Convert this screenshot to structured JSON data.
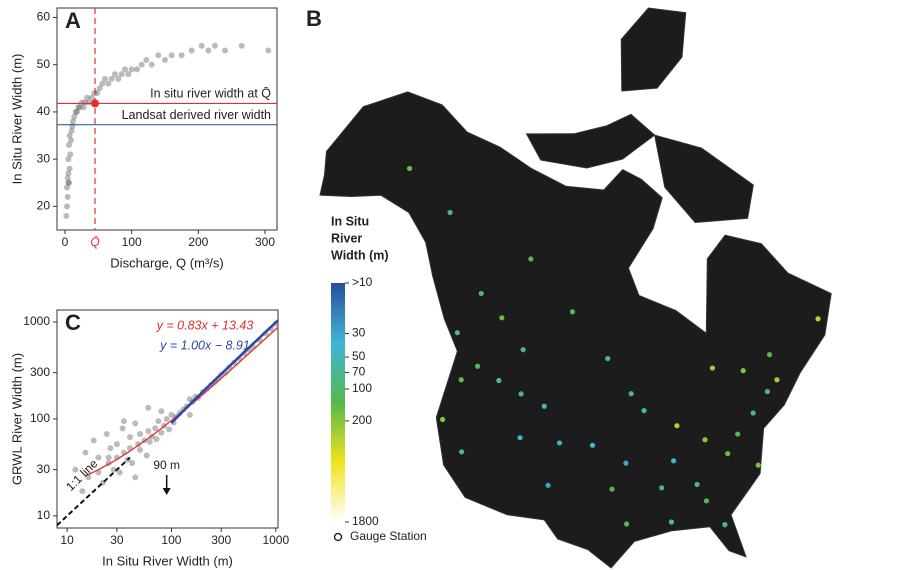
{
  "chart_data": [
    {
      "type": "scatter",
      "panel_label": "A",
      "x_label": "Discharge, Q (m³/s)",
      "y_label": "In Situ River Width (m)",
      "x": [
        2,
        3,
        3,
        4,
        4,
        5,
        5,
        5,
        6,
        6,
        7,
        7,
        8,
        9,
        10,
        11,
        12,
        14,
        16,
        18,
        20,
        22,
        25,
        28,
        30,
        33,
        36,
        40,
        44,
        48,
        52,
        56,
        60,
        65,
        70,
        75,
        80,
        85,
        90,
        95,
        100,
        108,
        115,
        122,
        130,
        140,
        150,
        160,
        175,
        190,
        205,
        215,
        225,
        240,
        265,
        305
      ],
      "values": [
        18,
        20,
        24,
        22,
        26,
        25,
        27,
        30,
        25,
        33,
        28,
        35,
        31,
        34,
        36,
        37,
        38,
        39,
        40,
        40,
        41,
        41,
        42,
        41,
        42,
        43,
        42,
        43,
        44,
        44,
        45,
        46,
        47,
        46,
        47,
        48,
        47,
        48,
        49,
        48,
        49,
        49,
        50,
        51,
        50,
        52,
        51,
        52,
        52,
        53,
        54,
        53,
        54,
        53,
        54,
        53
      ],
      "color": "#555555",
      "xlim": [
        -12,
        318
      ],
      "ylim": [
        15,
        62
      ],
      "xticks": [
        0,
        100,
        200,
        300
      ],
      "yticks": [
        20,
        30,
        40,
        50,
        60
      ],
      "hlines": [
        {
          "label": "In situ river width at Q̄",
          "value": 41.8,
          "color": "#e0302e"
        },
        {
          "label": "Landsat derived river width",
          "value": 37.3,
          "color": "#3b5ba8"
        }
      ],
      "vline": {
        "label": "Q̄",
        "value": 45,
        "color": "#e0302e"
      }
    },
    {
      "type": "scatter",
      "panel_label": "C",
      "log_scale": true,
      "x_label": "In Situ River Width (m)",
      "y_label": "GRWL River Width (m)",
      "x": [
        12,
        14,
        15,
        16,
        18,
        20,
        20,
        22,
        24,
        25,
        26,
        28,
        30,
        30,
        32,
        34,
        35,
        38,
        40,
        40,
        42,
        45,
        48,
        50,
        50,
        55,
        58,
        60,
        62,
        65,
        70,
        72,
        75,
        80,
        85,
        90,
        95,
        100,
        105,
        110,
        120,
        130,
        140,
        150,
        160,
        170,
        180,
        200,
        220,
        240,
        260,
        280,
        300,
        330,
        360,
        400,
        450,
        500,
        550,
        600,
        700,
        800,
        900,
        1000,
        60,
        45,
        35,
        25,
        150,
        80
      ],
      "values": [
        30,
        18,
        45,
        25,
        60,
        28,
        40,
        22,
        70,
        35,
        50,
        30,
        55,
        40,
        28,
        80,
        45,
        38,
        65,
        50,
        35,
        90,
        55,
        48,
        70,
        60,
        42,
        75,
        58,
        66,
        80,
        62,
        95,
        72,
        85,
        100,
        78,
        110,
        92,
        105,
        115,
        125,
        135,
        160,
        150,
        170,
        165,
        190,
        205,
        225,
        240,
        260,
        285,
        300,
        340,
        380,
        420,
        470,
        520,
        560,
        650,
        760,
        850,
        960,
        130,
        25,
        95,
        40,
        110,
        120
      ],
      "color": "#555555",
      "xlim": [
        8,
        1050
      ],
      "ylim": [
        7.5,
        1330
      ],
      "xticks": [
        10,
        30,
        100,
        300,
        1000
      ],
      "yticks": [
        10,
        30,
        100,
        300,
        1000
      ],
      "fits": [
        {
          "label": "y = 0.83x + 13.43",
          "slope": 0.83,
          "intercept": 13.43,
          "color": "#e0302e",
          "xrange": [
            15,
            1050
          ]
        },
        {
          "label": "y = 1.00x − 8.91",
          "slope": 1.0,
          "intercept": -8.91,
          "color": "#2c47a8",
          "xrange": [
            100,
            1050
          ]
        }
      ],
      "one_to_one": {
        "label": "1:1 line",
        "xrange": [
          8,
          40
        ]
      },
      "annotation": {
        "text": "90 m",
        "x": 90
      }
    },
    {
      "type": "map",
      "panel_label": "B",
      "lon": [
        -85,
        -80,
        -78,
        -75,
        -83,
        -88,
        -90,
        -84,
        -82,
        -87,
        -92,
        -95,
        -97,
        -100,
        -94,
        -72,
        -70,
        -76,
        -89,
        -95,
        -105,
        -108,
        -112,
        -116,
        -120,
        -122,
        -123,
        -119,
        -111,
        -106,
        -113,
        -118,
        -123,
        -125,
        -115,
        -135,
        -148,
        -105,
        -98,
        -75,
        -70,
        -60,
        -80
      ],
      "lat": [
        35,
        38,
        40,
        42,
        40,
        38,
        35,
        33,
        30,
        42,
        44,
        38,
        35,
        40,
        46,
        44,
        45,
        36,
        31,
        31,
        40,
        44,
        45,
        46,
        47,
        45,
        40,
        37,
        40,
        35,
        50,
        53,
        55,
        50,
        60,
        62,
        64,
        55,
        50,
        47,
        48,
        50,
        48
      ],
      "values": [
        60,
        150,
        120,
        90,
        200,
        45,
        80,
        110,
        70,
        300,
        55,
        30,
        140,
        40,
        90,
        100,
        250,
        180,
        65,
        120,
        35,
        50,
        90,
        70,
        110,
        150,
        200,
        60,
        40,
        30,
        80,
        150,
        100,
        60,
        120,
        90,
        160,
        100,
        70,
        200,
        130,
        300,
        250
      ],
      "colorbar": {
        "title": [
          "In Situ",
          "River",
          "Width (m)"
        ],
        "lim": [
          10,
          1800
        ],
        "ticks": [
          {
            "value": 10,
            "label": ">10"
          },
          30,
          50,
          70,
          100,
          200,
          1800
        ],
        "colors": [
          "#2a4d9e",
          "#3fb6d6",
          "#56b84a",
          "#f0e41c",
          "#ffffff"
        ]
      },
      "legend": "Gauge Station"
    }
  ]
}
